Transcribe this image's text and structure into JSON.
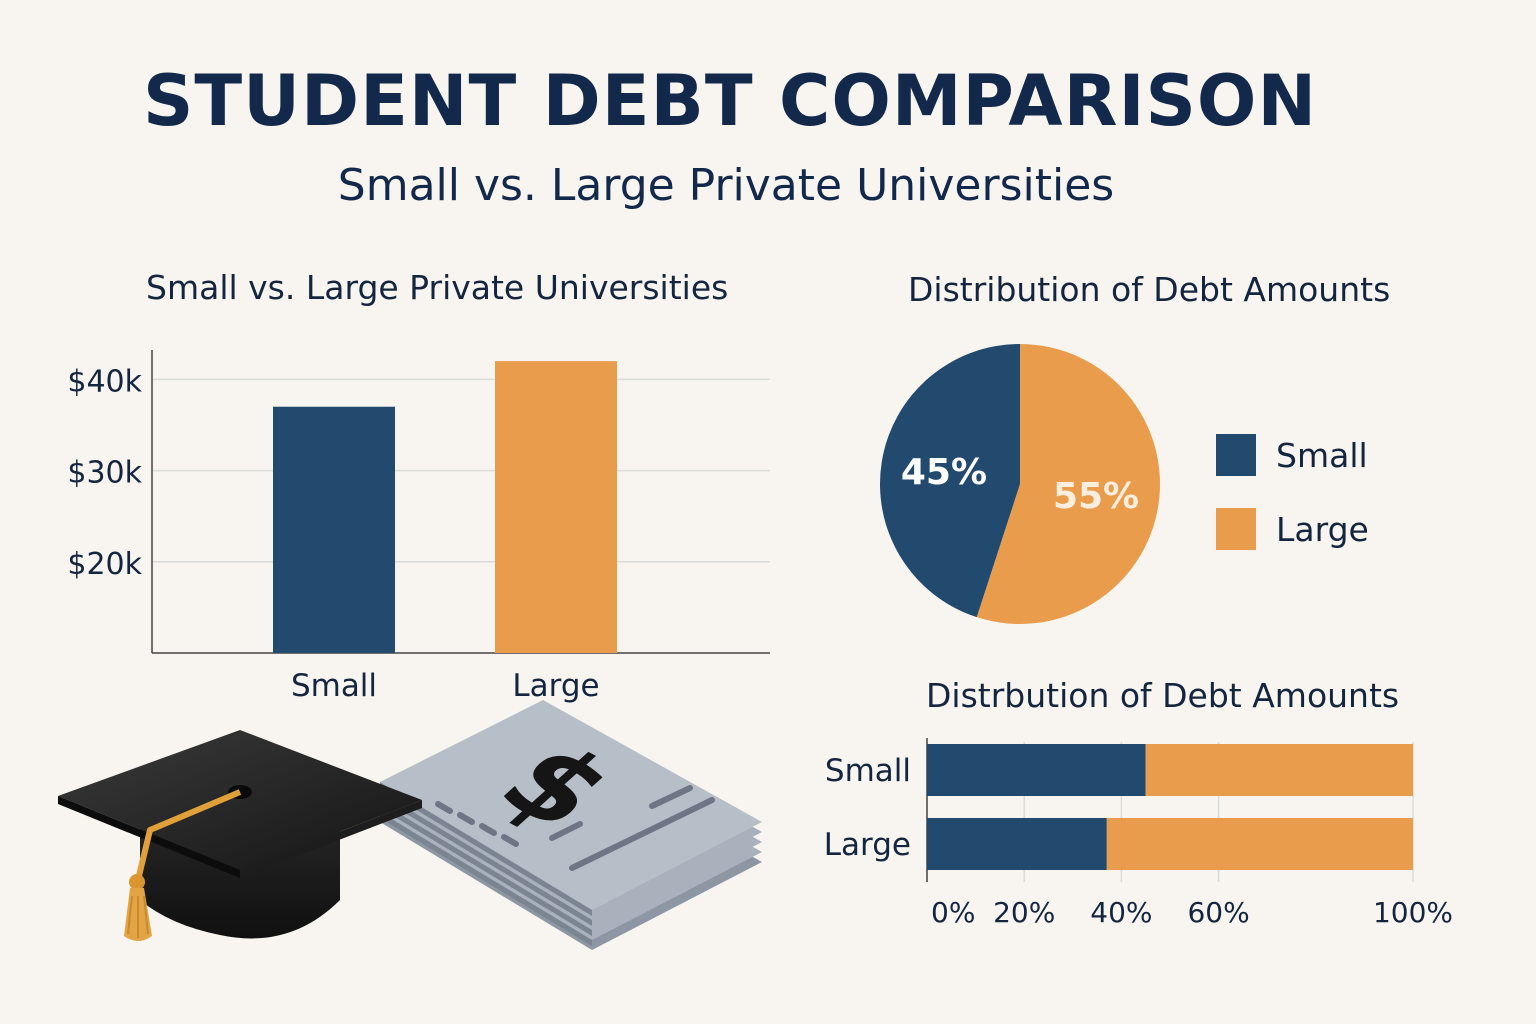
{
  "header": {
    "title": "STUDENT DEBT COMPARISON",
    "subtitle": "Small vs. Large Private Universities"
  },
  "colors": {
    "small": "#224a6e",
    "large": "#e99d4c",
    "grid": "#d9dcd8",
    "axis": "#444444"
  },
  "chart_data": [
    {
      "type": "bar",
      "title": "Small vs. Large Private Universities",
      "categories": [
        "Small",
        "Large"
      ],
      "values": [
        37000,
        42000
      ],
      "ylim": [
        10000,
        43000
      ],
      "yticks": [
        20000,
        30000,
        40000
      ],
      "ytick_labels": [
        "$20k",
        "$30k",
        "$40k"
      ],
      "grid": true
    },
    {
      "type": "pie",
      "title": "Distribution of Debt Amounts",
      "labels": [
        "Small",
        "Large"
      ],
      "values": [
        45,
        55
      ],
      "value_labels": [
        "45%",
        "55%"
      ],
      "legend": "right"
    },
    {
      "type": "bar",
      "orientation": "horizontal-stacked",
      "title": "Distrbution of Debt Amounts",
      "categories": [
        "Small",
        "Large"
      ],
      "series": [
        {
          "values": [
            45,
            37
          ]
        },
        {
          "values": [
            55,
            63
          ]
        }
      ],
      "xlim": [
        0,
        100
      ],
      "xticks": [
        0,
        20,
        40,
        60,
        100
      ],
      "xtick_labels": [
        "0%",
        "20%",
        "40%",
        "60%",
        "100%"
      ],
      "grid": true
    }
  ],
  "illustration": {
    "icons": [
      "graduation-cap-icon",
      "dollar-document-stack-icon"
    ],
    "dollar_glyph": "$"
  }
}
